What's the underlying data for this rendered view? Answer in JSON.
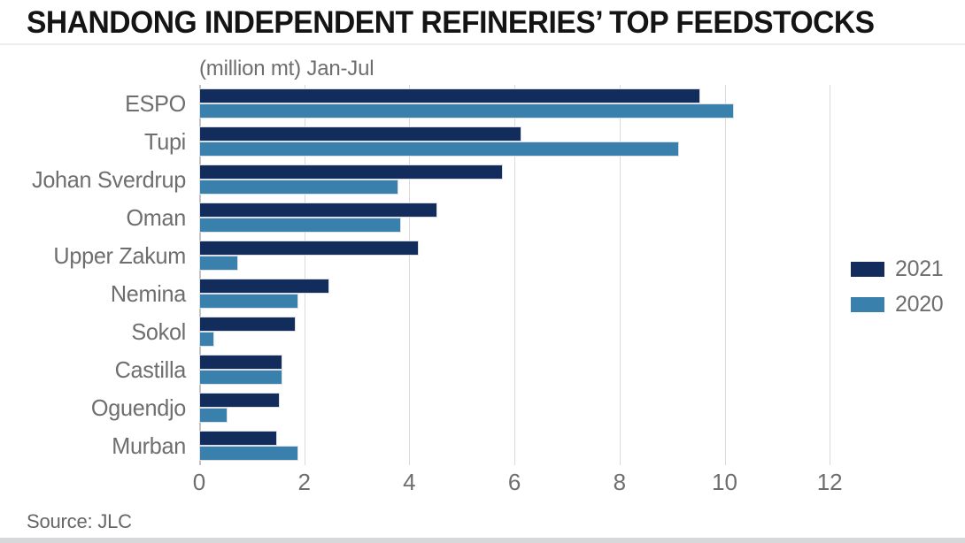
{
  "title": "SHANDONG INDEPENDENT REFINERIES’ TOP FEEDSTOCKS",
  "subtitle": "(million mt) Jan-Jul",
  "source": "Source: JLC",
  "colors": {
    "series_2021": "#122c5b",
    "series_2020": "#3a80ac",
    "text_gray": "#6e6e6e",
    "gridline": "#dadada",
    "title_text": "#141414"
  },
  "chart_data": {
    "type": "bar",
    "orientation": "horizontal",
    "title": "SHANDONG INDEPENDENT REFINERIES’ TOP FEEDSTOCKS",
    "subtitle": "(million mt) Jan-Jul",
    "categories": [
      "ESPO",
      "Tupi",
      "Johan Sverdrup",
      "Oman",
      "Upper Zakum",
      "Nemina",
      "Sokol",
      "Castilla",
      "Oguendjo",
      "Murban"
    ],
    "series": [
      {
        "name": "2021",
        "color": "#122c5b",
        "values": [
          9.5,
          6.1,
          5.75,
          4.5,
          4.15,
          2.45,
          1.8,
          1.55,
          1.5,
          1.45
        ]
      },
      {
        "name": "2020",
        "color": "#3a80ac",
        "values": [
          10.15,
          9.1,
          3.75,
          3.8,
          0.7,
          1.85,
          0.25,
          1.55,
          0.5,
          1.85
        ]
      }
    ],
    "xlabel": "",
    "ylabel": "",
    "xlim": [
      0,
      12.3
    ],
    "xticks": [
      0,
      2,
      4,
      6,
      8,
      10,
      12
    ],
    "grid": "vertical",
    "legend_position": "right",
    "legend_entries": [
      "2021",
      "2020"
    ]
  }
}
